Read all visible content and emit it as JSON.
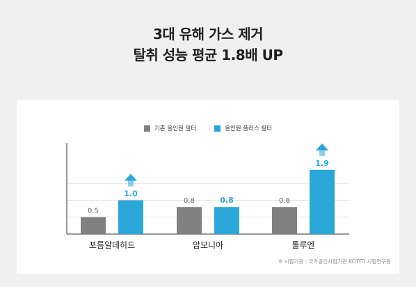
{
  "headline": {
    "line1": "3대 유해 가스 제거",
    "line2": "탈취 성능 평균 1.8배 UP"
  },
  "colors": {
    "series1": "#808080",
    "series2": "#2aa7d8",
    "label1": "#666666",
    "label2": "#2aa7d8",
    "arrow": "#2aa7d8",
    "grid": "#e3e3e3",
    "axis": "#333333"
  },
  "chart_data": {
    "type": "bar",
    "categories": [
      "포름알데히드",
      "암모니아",
      "톨루엔"
    ],
    "series": [
      {
        "name": "기존 올인원 필터",
        "values": [
          0.5,
          0.8,
          0.8
        ],
        "labels": [
          "0.5",
          "0.8",
          "0.8"
        ]
      },
      {
        "name": "올인원 플러스 필터",
        "values": [
          1.0,
          0.8,
          1.9
        ],
        "labels": [
          "1.0",
          "0.8",
          "1.9"
        ]
      }
    ],
    "ylim": [
      0,
      2.7
    ],
    "gridlines": [
      0.5,
      1.0,
      1.5
    ],
    "legend_position": "top-center",
    "growth_arrows": [
      "포름알데히드",
      "톨루엔"
    ]
  },
  "footnote": "※ 시험기관 : 국가공인시험기관 KOTITI 시험연구원"
}
